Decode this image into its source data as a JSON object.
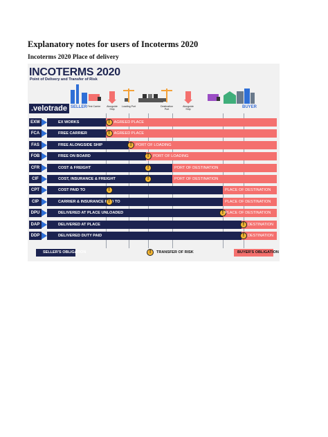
{
  "document": {
    "title": "Explanatory notes for users of Incoterms 2020",
    "subtitle": "Incoterms 2020 Place of delivery"
  },
  "figure": {
    "title": "INCOTERMS 2020",
    "subtitle": "Point of Delivery and Transfer of Risk",
    "logo": ".velotrade",
    "roles": {
      "seller": "SELLER",
      "buyer": "BUYER"
    },
    "stages": [
      {
        "label": "First Carrier",
        "icon": "truck-icon",
        "color": "#f4706e"
      },
      {
        "label": "Alongside Ship",
        "icon": "pin-icon",
        "color": "#f4706e"
      },
      {
        "label": "Loading Port",
        "icon": "crane-icon",
        "color": "#f4a23a"
      },
      {
        "label": "Destination Port",
        "icon": "crane-icon",
        "color": "#f4a23a"
      },
      {
        "label": "Alongside Ship",
        "icon": "pin-icon",
        "color": "#f4706e"
      },
      {
        "label": "",
        "icon": "truck-icon",
        "color": "#9b4ec4"
      },
      {
        "label": "",
        "icon": "warehouse-icon",
        "color": "#3fae7a"
      }
    ],
    "terms": [
      {
        "code": "EXW",
        "name": "EX WORKS",
        "place": "AGREED PLACE",
        "seller_end": 0.255,
        "risk": 0.27
      },
      {
        "code": "FCA",
        "name": "FREE CARRIER",
        "place": "AGREED PLACE",
        "seller_end": 0.255,
        "risk": 0.27
      },
      {
        "code": "FAS",
        "name": "FREE ALONGSIDE SHIP",
        "place": "PORT OF LOADING",
        "seller_end": 0.355,
        "risk": 0.365
      },
      {
        "code": "FOB",
        "name": "FREE ON BOARD",
        "place": "PORT OF LOADING",
        "seller_end": 0.43,
        "risk": 0.44
      },
      {
        "code": "CFR",
        "name": "COST & FREIGHT",
        "place": "PORT OF DESTINATION",
        "seller_end": 0.545,
        "risk": 0.44
      },
      {
        "code": "CIF",
        "name": "COST, INSURANCE & FREIGHT",
        "place": "PORT OF DESTINATION",
        "seller_end": 0.545,
        "risk": 0.44
      },
      {
        "code": "CPT",
        "name": "COST PAID TO",
        "place": "PLACE OF DESTINATION",
        "seller_end": 0.765,
        "risk": 0.27
      },
      {
        "code": "CIP",
        "name": "CARRIER & INSURANCE PAID TO",
        "place": "PLACE OF DESTINATION",
        "seller_end": 0.765,
        "risk": 0.27
      },
      {
        "code": "DPU",
        "name": "DELIVERED AT PLACE UNLOADED",
        "place": "PLACE OF DESTINATION",
        "seller_end": 0.765,
        "risk": 0.765
      },
      {
        "code": "DAP",
        "name": "DELIVERED AT PLACE",
        "place": "DESTINATION",
        "seller_end": 0.845,
        "risk": 0.855
      },
      {
        "code": "DDP",
        "name": "DELIVERED DUTY PAID",
        "place": "DESTINATION",
        "seller_end": 0.845,
        "risk": 0.855
      }
    ],
    "legend": {
      "seller": "SELLER'S OBLIGATION",
      "risk": "TRANSFER OF RISK",
      "buyer": "BUYER'S OBLIGATION"
    },
    "colors": {
      "seller": "#1c2350",
      "buyer": "#f4706e",
      "risk": "#f2b534",
      "arrow": "#2f6fd6"
    }
  }
}
